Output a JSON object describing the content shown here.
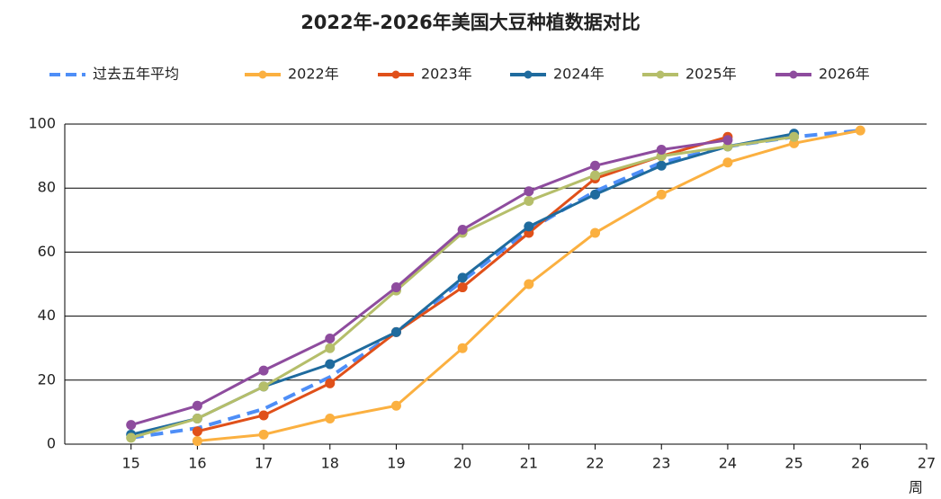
{
  "chart_data": {
    "type": "line",
    "title": "2022年-2026年美国大豆种植数据对比",
    "x_label": "周",
    "x": [
      15,
      16,
      17,
      18,
      19,
      20,
      21,
      22,
      23,
      24,
      25,
      26
    ],
    "series": [
      {
        "name": "过去五年平均",
        "color": "#4e8ef7",
        "dashed": true,
        "markers": false,
        "values": [
          2,
          5,
          11,
          21,
          35,
          51,
          67,
          79,
          88,
          93,
          96,
          98
        ]
      },
      {
        "name": "2022年",
        "color": "#fbb040",
        "values": [
          null,
          1,
          3,
          8,
          12,
          30,
          50,
          66,
          78,
          88,
          94,
          98
        ]
      },
      {
        "name": "2023年",
        "color": "#e0501a",
        "values": [
          null,
          4,
          9,
          19,
          35,
          49,
          66,
          83,
          90,
          96,
          null,
          null
        ]
      },
      {
        "name": "2024年",
        "color": "#1f6b9e",
        "values": [
          3,
          8,
          18,
          25,
          35,
          52,
          68,
          78,
          87,
          93,
          97,
          null
        ]
      },
      {
        "name": "2025年",
        "color": "#b5be6a",
        "values": [
          2,
          8,
          18,
          30,
          48,
          66,
          76,
          84,
          90,
          93,
          96,
          null
        ]
      },
      {
        "name": "2026年",
        "color": "#8e4c9e",
        "values": [
          6,
          12,
          23,
          33,
          49,
          67,
          79,
          87,
          92,
          95,
          null,
          null
        ]
      }
    ],
    "xlim": [
      14,
      27
    ],
    "xticks": [
      15,
      16,
      17,
      18,
      19,
      20,
      21,
      22,
      23,
      24,
      25,
      26,
      27
    ],
    "ylim": [
      0,
      100
    ],
    "yticks": [
      0,
      20,
      40,
      60,
      80,
      100
    ],
    "grid": true,
    "legend": "top"
  }
}
